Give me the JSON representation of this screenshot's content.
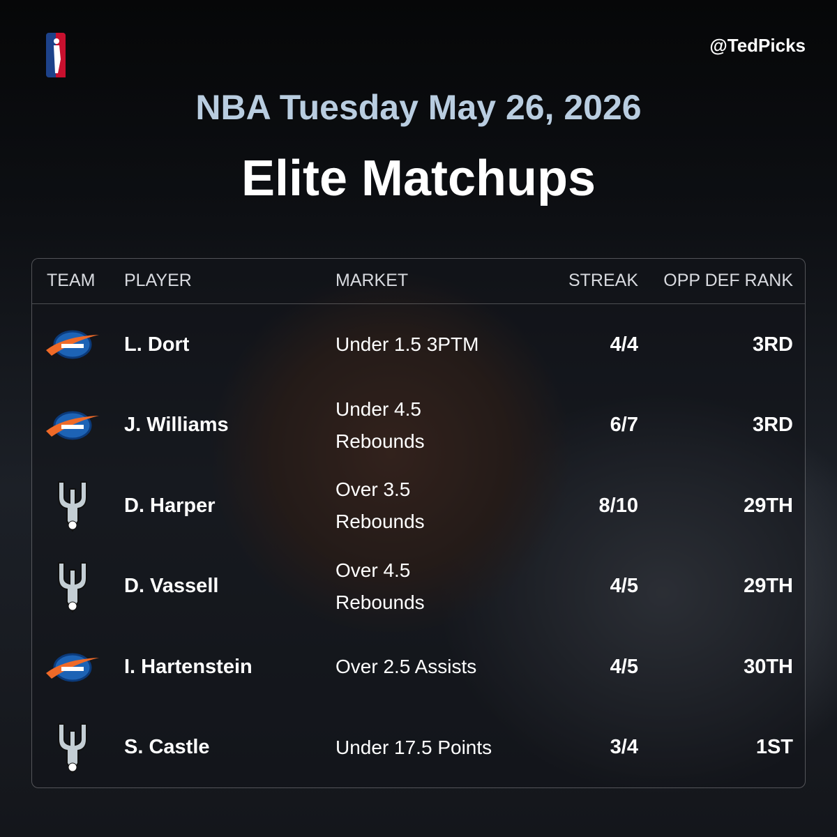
{
  "header": {
    "handle": "@TedPicks",
    "subtitle": "NBA Tuesday May 26, 2026",
    "title": "Elite Matchups"
  },
  "table": {
    "columns": [
      "TEAM",
      "PLAYER",
      "MARKET",
      "STREAK",
      "OPP DEF RANK"
    ],
    "rows": [
      {
        "player": "L. Dort",
        "market": [
          "Under 1.5 3PTM"
        ],
        "streak": "4/4",
        "rank": "3RD"
      },
      {
        "player": "J. Williams",
        "market": [
          "Under 4.5",
          "Rebounds"
        ],
        "streak": "6/7",
        "rank": "3RD"
      },
      {
        "player": "D. Harper",
        "market": [
          "Over 3.5",
          "Rebounds"
        ],
        "streak": "8/10",
        "rank": "29TH"
      },
      {
        "player": "D. Vassell",
        "market": [
          "Over 4.5",
          "Rebounds"
        ],
        "streak": "4/5",
        "rank": "29TH"
      },
      {
        "player": "I. Hartenstein",
        "market": [
          "Over 2.5 Assists"
        ],
        "streak": "4/5",
        "rank": "30TH"
      },
      {
        "player": "S. Castle",
        "market": [
          "Under 17.5 Points"
        ],
        "streak": "3/4",
        "rank": "1ST"
      }
    ]
  }
}
